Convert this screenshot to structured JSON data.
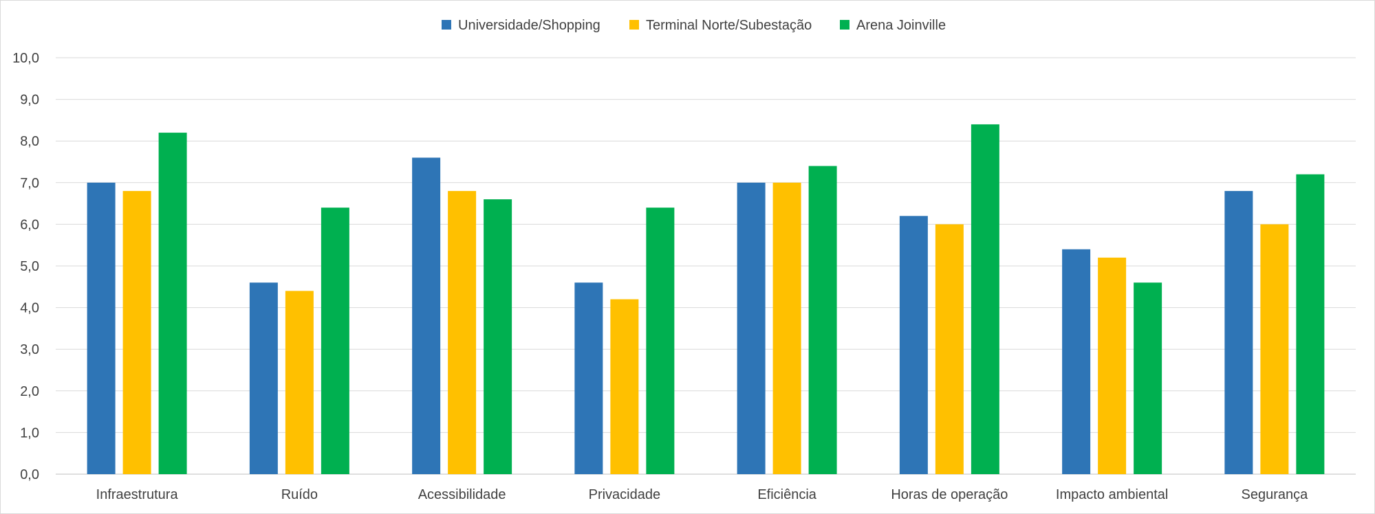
{
  "chart_data": {
    "type": "bar",
    "categories": [
      "Infraestrutura",
      "Ruído",
      "Acessibilidade",
      "Privacidade",
      "Eficiência",
      "Horas de operação",
      "Impacto ambiental",
      "Segurança"
    ],
    "series": [
      {
        "name": "Universidade/Shopping",
        "color": "#2e75b6",
        "values": [
          7.0,
          4.6,
          7.6,
          4.6,
          7.0,
          6.2,
          5.4,
          6.8
        ]
      },
      {
        "name": "Terminal Norte/Subestação",
        "color": "#ffc000",
        "values": [
          6.8,
          4.4,
          6.8,
          4.2,
          7.0,
          6.0,
          5.2,
          6.0
        ]
      },
      {
        "name": "Arena Joinville",
        "color": "#00b050",
        "values": [
          8.2,
          6.4,
          6.6,
          6.4,
          7.4,
          8.4,
          4.6,
          7.2
        ]
      }
    ],
    "yticks": [
      "0,0",
      "1,0",
      "2,0",
      "3,0",
      "4,0",
      "5,0",
      "6,0",
      "7,0",
      "8,0",
      "9,0",
      "10,0"
    ],
    "ylim": [
      0,
      10
    ],
    "grid": true,
    "legend_position": "top-center",
    "title": "",
    "xlabel": "",
    "ylabel": ""
  }
}
